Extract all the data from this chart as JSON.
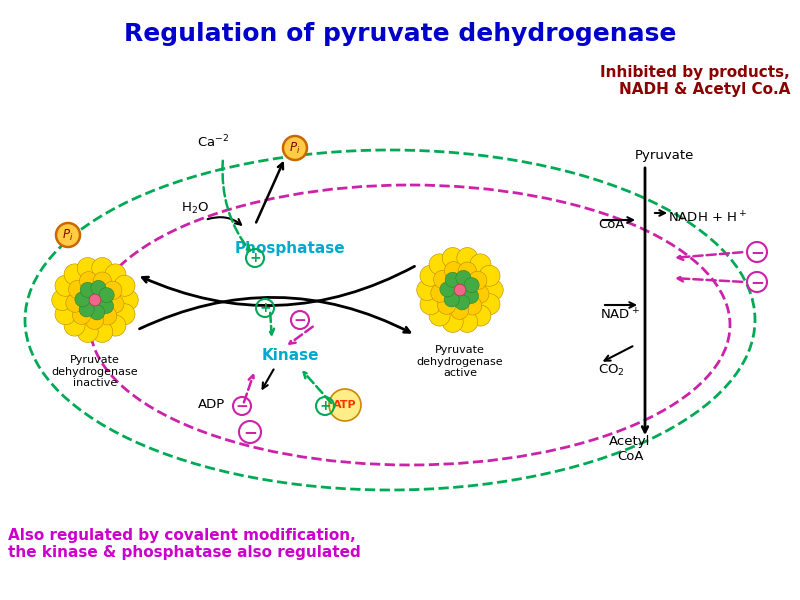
{
  "title": "Regulation of pyruvate dehydrogenase",
  "title_color": "#0000cc",
  "title_fontsize": 18,
  "inhibited_text": "Inhibited by products,\nNADH & Acetyl Co.A",
  "inhibited_color": "#8b0000",
  "inhibited_fontsize": 11,
  "also_regulated_text": "Also regulated by covalent modification,\nthe kinase & phosphatase also regulated",
  "also_regulated_color": "#cc00cc",
  "also_regulated_fontsize": 11,
  "bg_color": "#ffffff",
  "green_dashed": "#00aa55",
  "pink_dashed": "#cc22aa",
  "kinase_color": "#00aacc",
  "phosphatase_color": "#00aacc",
  "atp_color": "#ff3300",
  "atp_bg": "#ffee88",
  "pi_fill": "#ffcc44",
  "pi_border": "#cc6600",
  "sphere_yellow": "#ffdd00",
  "sphere_yellow2": "#ffcc00",
  "sphere_green": "#44aa44",
  "sphere_pink": "#ee6688"
}
